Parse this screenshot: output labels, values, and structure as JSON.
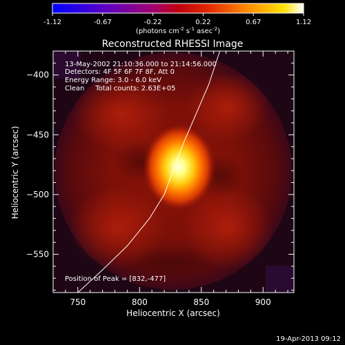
{
  "colorbar": {
    "ticks": [
      "-1.12",
      "-0.67",
      "-0.22",
      "0.22",
      "0.67",
      "1.12"
    ],
    "unit_main": "(photons cm",
    "unit_exp1": "-2",
    "unit_mid": " s",
    "unit_exp2": "-1",
    "unit_tail": " asec",
    "unit_exp3": "-2",
    "unit_close": ")"
  },
  "chart_data": {
    "type": "heatmap",
    "title": "Reconstructed RHESSI Image",
    "xlabel": "Heliocentric X (arcsec)",
    "ylabel": "Heliocentric Y (arcsec)",
    "xlim": [
      730,
      925
    ],
    "ylim": [
      -582,
      -380
    ],
    "x_ticks": [
      750,
      800,
      850,
      900
    ],
    "y_ticks": [
      -400,
      -450,
      -500,
      -550
    ],
    "colormap": "heat (black-red-orange-yellow-white)",
    "color_range": [
      -1.12,
      1.12
    ],
    "peak": {
      "x": 832,
      "y": -477
    },
    "limb_curve_xy": [
      [
        750,
        -582
      ],
      [
        770,
        -563
      ],
      [
        790,
        -543
      ],
      [
        808,
        -520
      ],
      [
        820,
        -500
      ],
      [
        828,
        -477
      ],
      [
        836,
        -456
      ],
      [
        846,
        -432
      ],
      [
        856,
        -408
      ],
      [
        865,
        -380
      ]
    ],
    "annotations": [
      "13-May-2002 21:10:36.000 to 21:14:56.000",
      "Detectors: 4F 5F 6F 7F 8F, Att 0",
      "Energy Range: 3.0 - 6.0 keV",
      "Clean     Total counts: 2.63E+05",
      "Position of Peak = [832,-477]"
    ]
  },
  "footer": {
    "timestamp": "19-Apr-2013 09:12"
  }
}
